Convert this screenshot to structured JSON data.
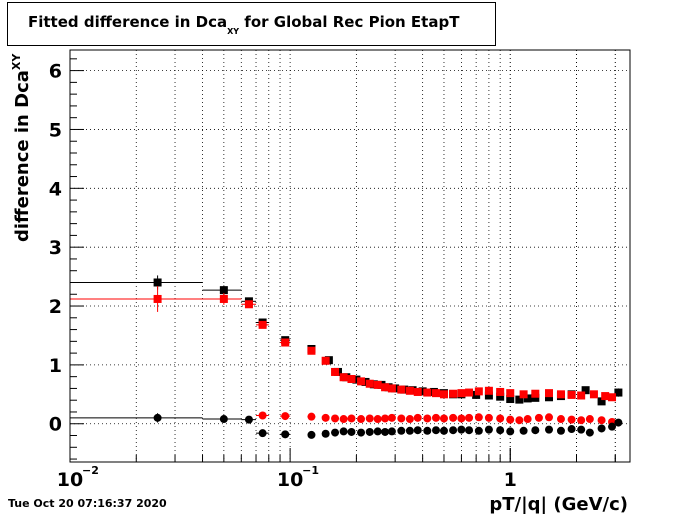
{
  "title": {
    "prefix": "Fitted difference in Dca",
    "subscript": "XY",
    "suffix": "  for Global Rec Pion EtapT"
  },
  "timestamp": "Tue Oct 20 07:16:37 2020",
  "chart_data": {
    "type": "scatter",
    "title": "Fitted difference in Dca_XY  for Global Rec Pion EtapT",
    "xlabel": "pT/|q| (GeV/c)",
    "ylabel": "difference in Dca_XY",
    "xscale": "log",
    "xlim": [
      0.01,
      3.5
    ],
    "ylim": [
      -0.65,
      6.35
    ],
    "yticks": [
      0,
      1,
      2,
      3,
      4,
      5,
      6
    ],
    "xtick_labels": [
      "10^-2",
      "10^-1",
      "1"
    ],
    "grid": true,
    "colors": {
      "black": "#000000",
      "red": "#ff0000"
    },
    "series": [
      {
        "marker": "square",
        "color": "black",
        "points": [
          {
            "x": 0.025,
            "y": 2.4,
            "xlo": 0.01,
            "xhi": 0.04,
            "err": 0.12
          },
          {
            "x": 0.05,
            "y": 2.27,
            "xlo": 0.04,
            "xhi": 0.06,
            "err": 0.08
          },
          {
            "x": 0.065,
            "y": 2.08,
            "xlo": 0.06,
            "xhi": 0.07,
            "err": 0.06
          },
          {
            "x": 0.075,
            "y": 1.72,
            "xlo": 0.07,
            "xhi": 0.08,
            "err": 0.05
          },
          {
            "x": 0.095,
            "y": 1.42,
            "xlo": 0.09,
            "xhi": 0.1,
            "err": 0.04
          },
          {
            "x": 0.125,
            "y": 1.27,
            "xlo": 0.12,
            "xhi": 0.13,
            "err": 0.03
          },
          {
            "x": 0.15,
            "y": 1.08
          },
          {
            "x": 0.165,
            "y": 0.88
          },
          {
            "x": 0.18,
            "y": 0.79
          },
          {
            "x": 0.2,
            "y": 0.75
          },
          {
            "x": 0.22,
            "y": 0.71
          },
          {
            "x": 0.24,
            "y": 0.67
          },
          {
            "x": 0.26,
            "y": 0.66
          },
          {
            "x": 0.28,
            "y": 0.62
          },
          {
            "x": 0.3,
            "y": 0.6
          },
          {
            "x": 0.33,
            "y": 0.58
          },
          {
            "x": 0.36,
            "y": 0.57
          },
          {
            "x": 0.4,
            "y": 0.55
          },
          {
            "x": 0.45,
            "y": 0.54
          },
          {
            "x": 0.5,
            "y": 0.52
          },
          {
            "x": 0.55,
            "y": 0.5
          },
          {
            "x": 0.6,
            "y": 0.5
          },
          {
            "x": 0.7,
            "y": 0.49
          },
          {
            "x": 0.8,
            "y": 0.48
          },
          {
            "x": 0.9,
            "y": 0.46
          },
          {
            "x": 1.0,
            "y": 0.42
          },
          {
            "x": 1.1,
            "y": 0.41
          },
          {
            "x": 1.2,
            "y": 0.43
          },
          {
            "x": 1.3,
            "y": 0.44
          },
          {
            "x": 1.5,
            "y": 0.45
          },
          {
            "x": 1.7,
            "y": 0.47
          },
          {
            "x": 1.9,
            "y": 0.5
          },
          {
            "x": 2.2,
            "y": 0.57,
            "err": 0.05
          },
          {
            "x": 2.6,
            "y": 0.38,
            "err": 0.06
          },
          {
            "x": 3.1,
            "y": 0.53,
            "err": 0.07
          }
        ]
      },
      {
        "marker": "square",
        "color": "red",
        "points": [
          {
            "x": 0.025,
            "y": 2.12,
            "xlo": 0.01,
            "xhi": 0.04,
            "err": 0.22
          },
          {
            "x": 0.05,
            "y": 2.12,
            "xlo": 0.04,
            "xhi": 0.06,
            "err": 0.1
          },
          {
            "x": 0.065,
            "y": 2.03,
            "xlo": 0.06,
            "xhi": 0.07,
            "err": 0.06
          },
          {
            "x": 0.075,
            "y": 1.68,
            "xlo": 0.07,
            "xhi": 0.08,
            "err": 0.04
          },
          {
            "x": 0.095,
            "y": 1.38,
            "xlo": 0.09,
            "xhi": 0.1,
            "err": 0.04
          },
          {
            "x": 0.125,
            "y": 1.24
          },
          {
            "x": 0.145,
            "y": 1.07
          },
          {
            "x": 0.16,
            "y": 0.88
          },
          {
            "x": 0.175,
            "y": 0.79
          },
          {
            "x": 0.19,
            "y": 0.76
          },
          {
            "x": 0.21,
            "y": 0.72
          },
          {
            "x": 0.23,
            "y": 0.68
          },
          {
            "x": 0.25,
            "y": 0.66
          },
          {
            "x": 0.27,
            "y": 0.62
          },
          {
            "x": 0.29,
            "y": 0.6
          },
          {
            "x": 0.32,
            "y": 0.58
          },
          {
            "x": 0.35,
            "y": 0.56
          },
          {
            "x": 0.38,
            "y": 0.54
          },
          {
            "x": 0.42,
            "y": 0.53
          },
          {
            "x": 0.46,
            "y": 0.52
          },
          {
            "x": 0.5,
            "y": 0.5
          },
          {
            "x": 0.55,
            "y": 0.51
          },
          {
            "x": 0.6,
            "y": 0.52
          },
          {
            "x": 0.65,
            "y": 0.53
          },
          {
            "x": 0.72,
            "y": 0.55
          },
          {
            "x": 0.8,
            "y": 0.56
          },
          {
            "x": 0.9,
            "y": 0.54
          },
          {
            "x": 1.0,
            "y": 0.52
          },
          {
            "x": 1.15,
            "y": 0.5
          },
          {
            "x": 1.3,
            "y": 0.51
          },
          {
            "x": 1.5,
            "y": 0.52
          },
          {
            "x": 1.7,
            "y": 0.5
          },
          {
            "x": 1.9,
            "y": 0.49
          },
          {
            "x": 2.1,
            "y": 0.48
          },
          {
            "x": 2.4,
            "y": 0.5
          },
          {
            "x": 2.7,
            "y": 0.47
          },
          {
            "x": 2.9,
            "y": 0.45
          }
        ]
      },
      {
        "marker": "circle",
        "color": "red",
        "points": [
          {
            "x": 0.075,
            "y": 0.14,
            "xlo": 0.07,
            "xhi": 0.08
          },
          {
            "x": 0.095,
            "y": 0.13,
            "xlo": 0.09,
            "xhi": 0.1
          },
          {
            "x": 0.125,
            "y": 0.12,
            "xlo": 0.12,
            "xhi": 0.13
          },
          {
            "x": 0.145,
            "y": 0.1
          },
          {
            "x": 0.16,
            "y": 0.09
          },
          {
            "x": 0.175,
            "y": 0.08
          },
          {
            "x": 0.19,
            "y": 0.09
          },
          {
            "x": 0.21,
            "y": 0.08
          },
          {
            "x": 0.23,
            "y": 0.09
          },
          {
            "x": 0.25,
            "y": 0.08
          },
          {
            "x": 0.27,
            "y": 0.09
          },
          {
            "x": 0.29,
            "y": 0.1
          },
          {
            "x": 0.32,
            "y": 0.09
          },
          {
            "x": 0.35,
            "y": 0.08
          },
          {
            "x": 0.38,
            "y": 0.1
          },
          {
            "x": 0.42,
            "y": 0.09
          },
          {
            "x": 0.46,
            "y": 0.1
          },
          {
            "x": 0.5,
            "y": 0.09
          },
          {
            "x": 0.55,
            "y": 0.1
          },
          {
            "x": 0.6,
            "y": 0.09
          },
          {
            "x": 0.65,
            "y": 0.1
          },
          {
            "x": 0.72,
            "y": 0.11
          },
          {
            "x": 0.8,
            "y": 0.1
          },
          {
            "x": 0.9,
            "y": 0.09
          },
          {
            "x": 1.0,
            "y": 0.07
          },
          {
            "x": 1.1,
            "y": 0.06
          },
          {
            "x": 1.2,
            "y": 0.08
          },
          {
            "x": 1.35,
            "y": 0.1
          },
          {
            "x": 1.5,
            "y": 0.11
          },
          {
            "x": 1.7,
            "y": 0.08
          },
          {
            "x": 1.9,
            "y": 0.07
          },
          {
            "x": 2.1,
            "y": 0.06
          },
          {
            "x": 2.3,
            "y": 0.08
          },
          {
            "x": 2.6,
            "y": 0.06
          },
          {
            "x": 2.9,
            "y": 0.03
          }
        ]
      },
      {
        "marker": "circle",
        "color": "black",
        "points": [
          {
            "x": 0.025,
            "y": 0.1,
            "xlo": 0.01,
            "xhi": 0.04,
            "err": 0.08
          },
          {
            "x": 0.05,
            "y": 0.08,
            "xlo": 0.04,
            "xhi": 0.06,
            "err": 0.05
          },
          {
            "x": 0.065,
            "y": 0.07,
            "xlo": 0.06,
            "xhi": 0.07
          },
          {
            "x": 0.075,
            "y": -0.16,
            "xlo": 0.07,
            "xhi": 0.08
          },
          {
            "x": 0.095,
            "y": -0.18,
            "xlo": 0.09,
            "xhi": 0.1
          },
          {
            "x": 0.125,
            "y": -0.19,
            "xlo": 0.12,
            "xhi": 0.13
          },
          {
            "x": 0.145,
            "y": -0.17
          },
          {
            "x": 0.16,
            "y": -0.15
          },
          {
            "x": 0.175,
            "y": -0.13
          },
          {
            "x": 0.19,
            "y": -0.14
          },
          {
            "x": 0.21,
            "y": -0.15
          },
          {
            "x": 0.23,
            "y": -0.14
          },
          {
            "x": 0.25,
            "y": -0.13
          },
          {
            "x": 0.27,
            "y": -0.14
          },
          {
            "x": 0.29,
            "y": -0.13
          },
          {
            "x": 0.32,
            "y": -0.12
          },
          {
            "x": 0.35,
            "y": -0.12
          },
          {
            "x": 0.38,
            "y": -0.11
          },
          {
            "x": 0.42,
            "y": -0.12
          },
          {
            "x": 0.46,
            "y": -0.11
          },
          {
            "x": 0.5,
            "y": -0.12
          },
          {
            "x": 0.55,
            "y": -0.11
          },
          {
            "x": 0.6,
            "y": -0.1
          },
          {
            "x": 0.65,
            "y": -0.11
          },
          {
            "x": 0.72,
            "y": -0.12
          },
          {
            "x": 0.8,
            "y": -0.1
          },
          {
            "x": 0.9,
            "y": -0.11
          },
          {
            "x": 1.0,
            "y": -0.13
          },
          {
            "x": 1.15,
            "y": -0.12
          },
          {
            "x": 1.3,
            "y": -0.11
          },
          {
            "x": 1.5,
            "y": -0.1
          },
          {
            "x": 1.7,
            "y": -0.12
          },
          {
            "x": 1.9,
            "y": -0.09
          },
          {
            "x": 2.1,
            "y": -0.1
          },
          {
            "x": 2.3,
            "y": -0.15
          },
          {
            "x": 2.6,
            "y": -0.08
          },
          {
            "x": 2.9,
            "y": -0.05
          },
          {
            "x": 3.1,
            "y": 0.02
          }
        ]
      }
    ]
  }
}
